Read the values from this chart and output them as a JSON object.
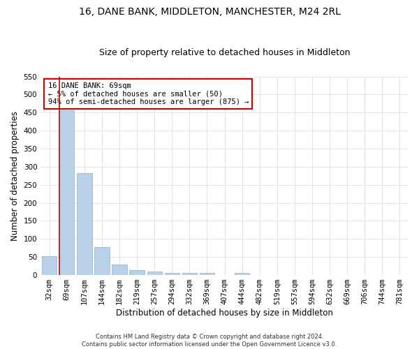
{
  "title": "16, DANE BANK, MIDDLETON, MANCHESTER, M24 2RL",
  "subtitle": "Size of property relative to detached houses in Middleton",
  "xlabel": "Distribution of detached houses by size in Middleton",
  "ylabel": "Number of detached properties",
  "categories": [
    "32sqm",
    "69sqm",
    "107sqm",
    "144sqm",
    "182sqm",
    "219sqm",
    "257sqm",
    "294sqm",
    "332sqm",
    "369sqm",
    "407sqm",
    "444sqm",
    "482sqm",
    "519sqm",
    "557sqm",
    "594sqm",
    "632sqm",
    "669sqm",
    "706sqm",
    "744sqm",
    "781sqm"
  ],
  "values": [
    52,
    457,
    283,
    77,
    30,
    13,
    10,
    5,
    5,
    5,
    0,
    5,
    0,
    0,
    0,
    0,
    0,
    0,
    0,
    0,
    0
  ],
  "bar_color": "#b8d0e8",
  "bar_edge_color": "#8ab0d0",
  "highlight_bar_index": 1,
  "highlight_color": "#cc0000",
  "ylim": [
    0,
    550
  ],
  "yticks": [
    0,
    50,
    100,
    150,
    200,
    250,
    300,
    350,
    400,
    450,
    500,
    550
  ],
  "annotation_text": "16 DANE BANK: 69sqm\n← 5% of detached houses are smaller (50)\n94% of semi-detached houses are larger (875) →",
  "annotation_box_color": "#ffffff",
  "annotation_box_edge": "#cc0000",
  "footer_line1": "Contains HM Land Registry data © Crown copyright and database right 2024.",
  "footer_line2": "Contains public sector information licensed under the Open Government Licence v3.0.",
  "grid_color": "#d0d8e8",
  "background_color": "#ffffff",
  "title_fontsize": 10,
  "subtitle_fontsize": 9,
  "tick_fontsize": 7.5,
  "ylabel_fontsize": 8.5,
  "xlabel_fontsize": 8.5,
  "footer_fontsize": 6,
  "annotation_fontsize": 7.5
}
